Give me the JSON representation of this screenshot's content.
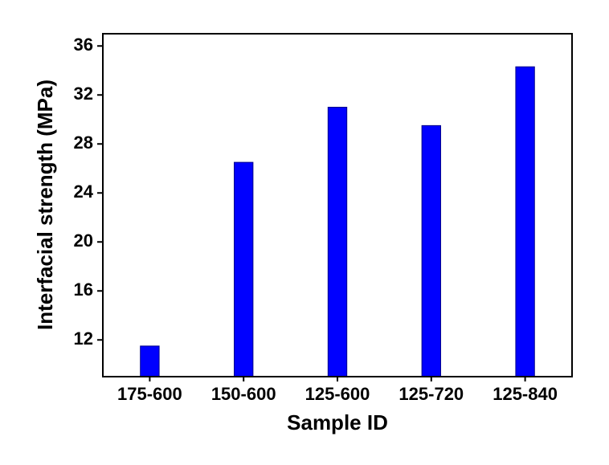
{
  "chart_data": {
    "type": "bar",
    "x_label": "Sample ID",
    "y_label": "Interfacial strength (MPa)",
    "categories": [
      "175-600",
      "150-600",
      "125-600",
      "125-720",
      "125-840"
    ],
    "values": [
      11.5,
      26.5,
      31,
      29.5,
      34.3
    ],
    "color": "#0000ff",
    "ylim": [
      9,
      37
    ],
    "yticks": [
      12,
      16,
      20,
      24,
      28,
      32,
      36
    ],
    "grid": false
  }
}
